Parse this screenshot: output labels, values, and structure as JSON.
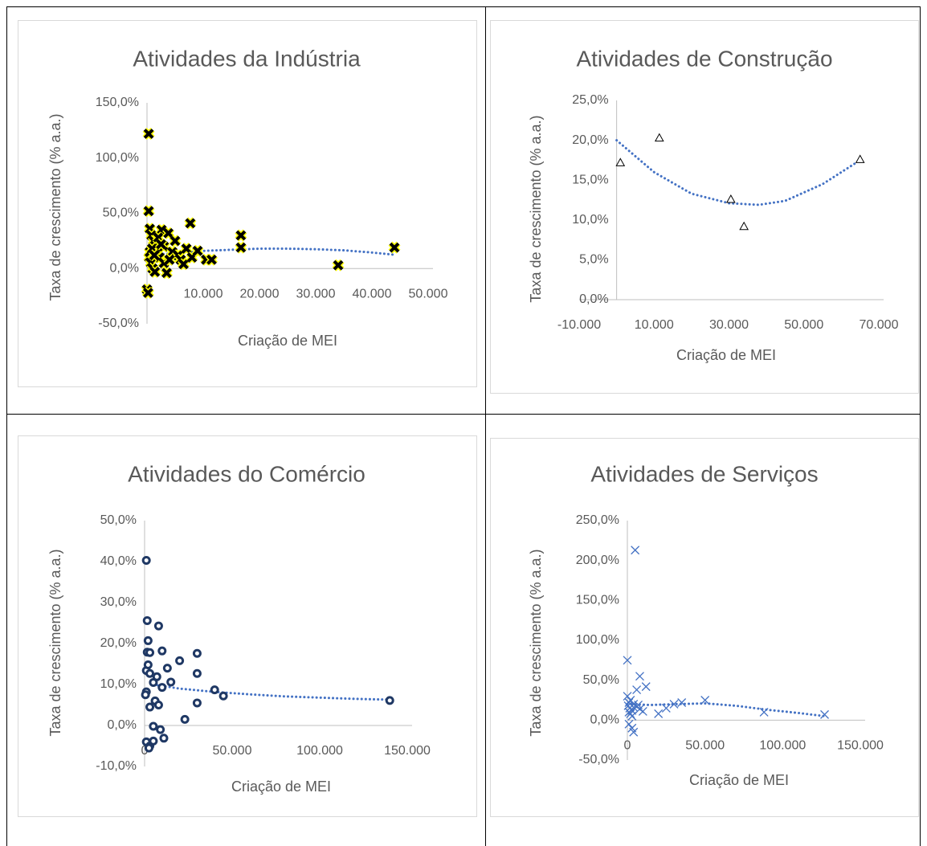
{
  "chart_data": [
    {
      "type": "scatter",
      "title": "Atividades da Indústria",
      "xlabel": "Criação de MEI",
      "ylabel": "Taxa de crescimento (% a.a.)",
      "marker": "cross-bold",
      "color": "#000000",
      "marker_edge": "#ffff00",
      "x": [
        300,
        300,
        0,
        200,
        500,
        800,
        1200,
        1500,
        1800,
        2200,
        2600,
        3000,
        3500,
        400,
        700,
        1000,
        1400,
        2000,
        3000,
        3800,
        4500,
        5000,
        5500,
        6000,
        6500,
        7000,
        7700,
        8000,
        9000,
        10500,
        11500,
        16700,
        16700,
        34000,
        44000,
        500,
        900,
        1300,
        2500,
        4000
      ],
      "values": [
        122,
        52,
        -19,
        -22,
        36,
        30,
        25,
        20,
        15,
        10,
        35,
        5,
        -4,
        10,
        5,
        0,
        -3,
        28,
        20,
        32,
        15,
        25,
        12,
        8,
        4,
        18,
        41,
        10,
        16,
        8,
        8,
        30,
        19,
        3,
        19,
        15,
        18,
        12,
        22,
        8
      ],
      "trendline": {
        "color": "#4472c4",
        "x": [
          0,
          5000,
          10000,
          15000,
          20000,
          25000,
          30000,
          35000,
          40000,
          44000
        ],
        "values": [
          12,
          14,
          16,
          17,
          18,
          18,
          17.5,
          16.5,
          14.5,
          12.5
        ]
      },
      "xlim": [
        0,
        50000
      ],
      "ylim": [
        -50,
        150
      ],
      "xticks": [
        {
          "value": 10000,
          "label": "10.000"
        },
        {
          "value": 20000,
          "label": "20.000"
        },
        {
          "value": 30000,
          "label": "30.000"
        },
        {
          "value": 40000,
          "label": "40.000"
        },
        {
          "value": 50000,
          "label": "50.000"
        }
      ],
      "yticks": [
        {
          "value": -50,
          "label": "-50,0%"
        },
        {
          "value": 0,
          "label": "0,0%"
        },
        {
          "value": 50,
          "label": "50,0%"
        },
        {
          "value": 100,
          "label": "100,0%"
        },
        {
          "value": 150,
          "label": "150,0%"
        }
      ]
    },
    {
      "type": "scatter",
      "title": "Atividades de Construção",
      "xlabel": "Criação de MEI",
      "ylabel": "Taxa de crescimento (% a.a.)",
      "marker": "triangle",
      "color": "#000000",
      "x": [
        1000,
        11400,
        30500,
        34000,
        65000
      ],
      "values": [
        17.2,
        20.3,
        12.6,
        9.2,
        17.6
      ],
      "trendline": {
        "color": "#4472c4",
        "x": [
          0,
          10000,
          20000,
          30000,
          38000,
          45000,
          55000,
          65000
        ],
        "values": [
          20,
          16,
          13.3,
          12.1,
          11.9,
          12.4,
          14.5,
          17.5
        ]
      },
      "xlim": [
        -10000,
        70000
      ],
      "ylim": [
        0,
        25
      ],
      "xticks": [
        {
          "value": -10000,
          "label": "-10.000"
        },
        {
          "value": 10000,
          "label": "10.000"
        },
        {
          "value": 30000,
          "label": "30.000"
        },
        {
          "value": 50000,
          "label": "50.000"
        },
        {
          "value": 70000,
          "label": "70.000"
        }
      ],
      "yticks": [
        {
          "value": 0,
          "label": "0,0%"
        },
        {
          "value": 5,
          "label": "5,0%"
        },
        {
          "value": 10,
          "label": "10,0%"
        },
        {
          "value": 15,
          "label": "15,0%"
        },
        {
          "value": 20,
          "label": "20,0%"
        },
        {
          "value": 25,
          "label": "25,0%"
        }
      ]
    },
    {
      "type": "scatter",
      "title": "Atividades do Comércio",
      "xlabel": "Criação de MEI",
      "ylabel": "Taxa de crescimento (% a.a.)",
      "marker": "circle",
      "color": "#1f3864",
      "x": [
        1000,
        1500,
        8000,
        1500,
        3000,
        10000,
        2000,
        20000,
        30000,
        1000,
        2000,
        3000,
        7000,
        13000,
        30000,
        1000,
        500,
        5000,
        10000,
        15000,
        40000,
        45000,
        3000,
        6000,
        8000,
        30000,
        140000,
        23000,
        5000,
        9000,
        1000,
        3000,
        5000,
        11000,
        2500
      ],
      "values": [
        40.3,
        25.6,
        24.3,
        17.9,
        17.8,
        18.2,
        20.7,
        15.8,
        17.6,
        13.4,
        14.8,
        12.7,
        11.9,
        14.0,
        12.7,
        8.2,
        7.5,
        10.5,
        9.3,
        10.6,
        8.7,
        7.2,
        4.5,
        6.0,
        5.0,
        5.5,
        6.1,
        1.5,
        -0.2,
        -1.0,
        -4.0,
        -5.0,
        -3.8,
        -3.1,
        -5.5
      ],
      "trendline": {
        "color": "#4472c4",
        "x": [
          5000,
          20000,
          40000,
          60000,
          80000,
          100000,
          120000,
          140000
        ],
        "values": [
          10,
          9,
          8.2,
          7.6,
          7.1,
          6.8,
          6.5,
          6.3
        ]
      },
      "xlim": [
        0,
        150000
      ],
      "ylim": [
        -10,
        50
      ],
      "xticks": [
        0,
        {
          "value": 50000,
          "label": "50.000"
        },
        {
          "value": 100000,
          "label": "100.000"
        },
        {
          "value": 150000,
          "label": "150.000"
        }
      ],
      "yticks": [
        {
          "value": -10,
          "label": "-10,0%"
        },
        {
          "value": 0,
          "label": "0,0%"
        },
        {
          "value": 10,
          "label": "10,0%"
        },
        {
          "value": 20,
          "label": "20,0%"
        },
        {
          "value": 30,
          "label": "30,0%"
        },
        {
          "value": 40,
          "label": "40,0%"
        },
        {
          "value": 50,
          "label": "50,0%"
        }
      ]
    },
    {
      "type": "scatter",
      "title": "Atividades de Serviços",
      "xlabel": "Criação de MEI",
      "ylabel": "Taxa de crescimento (% a.a.)",
      "marker": "cross",
      "color": "#4472c4",
      "x": [
        5000,
        0,
        8000,
        12000,
        6000,
        0,
        2000,
        500,
        1500,
        3000,
        4000,
        6000,
        8000,
        10000,
        1000,
        2000,
        3000,
        4000,
        1000,
        3000,
        4000,
        20000,
        25000,
        30000,
        35000,
        50000,
        88000,
        127000,
        1000,
        7000
      ],
      "values": [
        213,
        75,
        55,
        42,
        38,
        30,
        25,
        18,
        15,
        12,
        20,
        17,
        14,
        11,
        10,
        8,
        5,
        16,
        -5,
        -10,
        -15,
        8,
        15,
        20,
        22,
        25,
        10,
        7,
        22,
        19
      ],
      "trendline": {
        "color": "#4472c4",
        "x": [
          0,
          15000,
          30000,
          50000,
          70000,
          90000,
          110000,
          127000
        ],
        "values": [
          20,
          19,
          20,
          21,
          18,
          13,
          9,
          5
        ]
      },
      "xlim": [
        0,
        150000
      ],
      "ylim": [
        -50,
        250
      ],
      "xticks": [
        0,
        {
          "value": 50000,
          "label": "50.000"
        },
        {
          "value": 100000,
          "label": "100.000"
        },
        {
          "value": 150000,
          "label": "150.000"
        }
      ],
      "yticks": [
        {
          "value": -50,
          "label": "-50,0%"
        },
        {
          "value": 0,
          "label": "0,0%"
        },
        {
          "value": 50,
          "label": "50,0%"
        },
        {
          "value": 100,
          "label": "100,0%"
        },
        {
          "value": 150,
          "label": "150,0%"
        },
        {
          "value": 200,
          "label": "200,0%"
        },
        {
          "value": 250,
          "label": "250,0%"
        }
      ]
    }
  ]
}
